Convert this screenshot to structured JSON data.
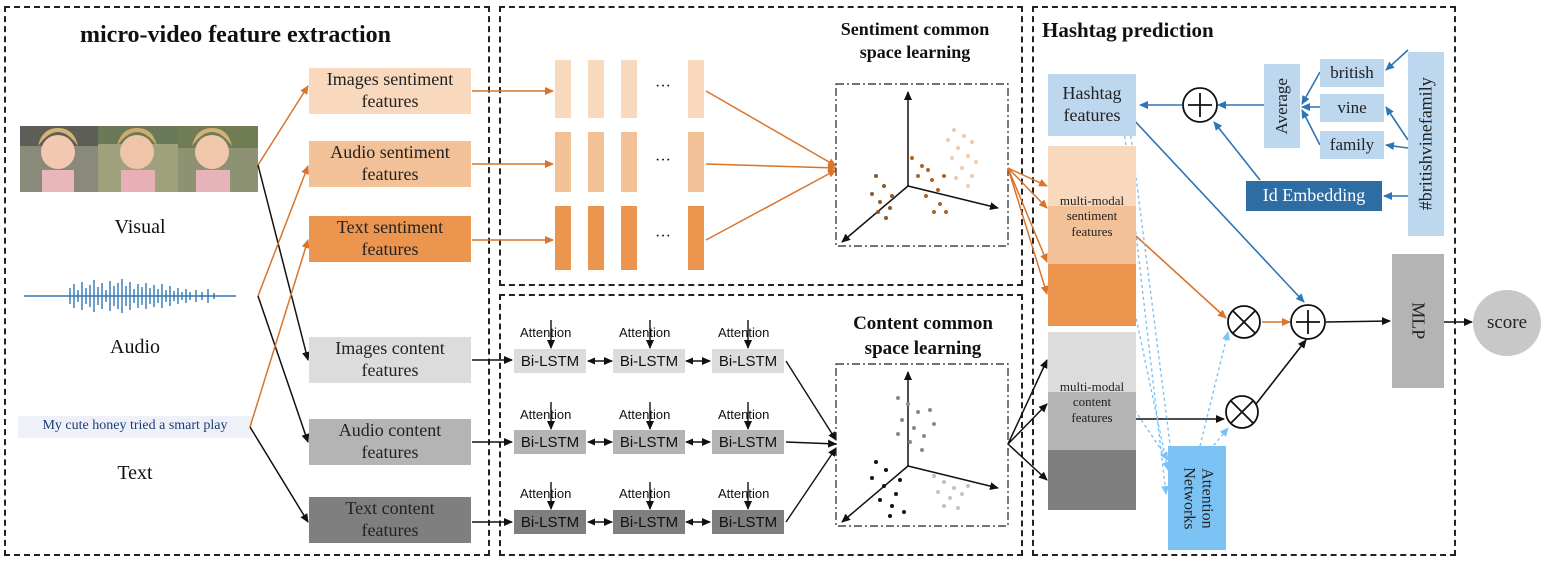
{
  "panels": {
    "extraction_title": "micro-video feature extraction",
    "sentiment_title_line1": "Sentiment common",
    "sentiment_title_line2": "space learning",
    "content_title_line1": "Content common",
    "content_title_line2": "space learning",
    "prediction_title": "Hashtag prediction"
  },
  "modalities": {
    "visual": "Visual",
    "audio": "Audio",
    "text": "Text",
    "text_sample": "My cute honey tried a smart play"
  },
  "sentiment_features": {
    "images_l1": "Images sentiment",
    "images_l2": "features",
    "audio_l1": "Audio sentiment",
    "audio_l2": "features",
    "text_l1": "Text sentiment",
    "text_l2": "features"
  },
  "content_features": {
    "images_l1": "Images content",
    "images_l2": "features",
    "audio_l1": "Audio content",
    "audio_l2": "features",
    "text_l1": "Text content",
    "text_l2": "features"
  },
  "rnn": {
    "attention": "Attention",
    "bilstm": "Bi-LSTM",
    "ellipsis": "···"
  },
  "prediction": {
    "hashtag_l1": "Hashtag",
    "hashtag_l2": "features",
    "average": "Average",
    "words": [
      "british",
      "vine",
      "family"
    ],
    "hashtag_full": "#britishvinefamily",
    "id_embedding": "Id Embedding",
    "mm_sent_l1": "multi-modal",
    "mm_sent_l2": "sentiment",
    "mm_sent_l3": "features",
    "mm_cont_l1": "multi-modal",
    "mm_cont_l2": "content",
    "mm_cont_l3": "features",
    "attention_l1": "Attention",
    "attention_l2": "Networks",
    "mlp": "MLP",
    "score": "score"
  },
  "colors": {
    "orange_light": "#f8d9bd",
    "orange_mid": "#f3c197",
    "orange_dark": "#eb954f",
    "gray_light": "#dcdcdc",
    "gray_mid": "#b4b4b4",
    "gray_dark": "#7f7f7f",
    "blue_light": "#bdd7ee",
    "blue_dark": "#2e6ca4",
    "attention_blue": "#7cc3f5",
    "orange_line": "#d9742a",
    "blue_line": "#2e75b6"
  }
}
